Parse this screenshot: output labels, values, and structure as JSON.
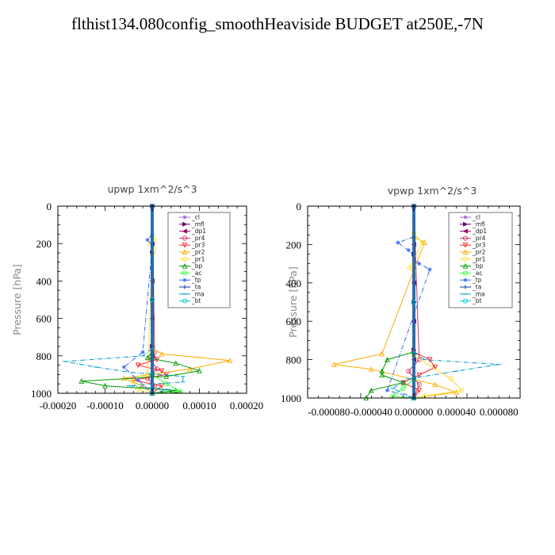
{
  "title": "flthist134.080config_smoothHeaviside  BUDGET at250E,-7N",
  "chart_data": [
    {
      "type": "line",
      "title": "upwp   1xm^2/s^3",
      "ylabel": "Pressure  [hPa]",
      "xlim": [
        -0.0002,
        0.0002
      ],
      "ylim": [
        1000,
        0
      ],
      "xticks": [
        "-0.00020",
        "-0.00010",
        "0.00000",
        "0.00010",
        "0.00020"
      ],
      "xtick_values": [
        -0.0002,
        -0.0001,
        0,
        0.0001,
        0.0002
      ],
      "yticks": [
        "0",
        "200",
        "400",
        "600",
        "800",
        "1000"
      ],
      "ytick_values": [
        0,
        200,
        400,
        600,
        800,
        1000
      ],
      "legend": "top-right",
      "series": [
        {
          "name": "_cl",
          "color": "#9966cc",
          "marker": "*",
          "x": [
            0,
            0,
            0,
            0,
            0
          ],
          "y": [
            0,
            250,
            500,
            750,
            1000
          ]
        },
        {
          "name": "_mfl",
          "color": "#660066",
          "marker": ">",
          "x": [
            0,
            0,
            0,
            0,
            0
          ],
          "y": [
            0,
            250,
            500,
            750,
            1000
          ]
        },
        {
          "name": "_dp1",
          "color": "#990066",
          "marker": "<",
          "x": [
            0,
            0,
            0,
            0,
            0,
            0,
            0
          ],
          "y": [
            0,
            200,
            400,
            600,
            800,
            900,
            1000
          ]
        },
        {
          "name": "_pr4",
          "color": "#cc3366",
          "marker": "o",
          "x": [
            0,
            5e-06,
            -5e-06,
            1e-05,
            -1e-05,
            5e-06,
            0
          ],
          "y": [
            0,
            780,
            820,
            870,
            920,
            960,
            1000
          ]
        },
        {
          "name": "_pr3",
          "color": "#ff2222",
          "marker": "v",
          "x": [
            0,
            1e-05,
            -3e-05,
            2e-05,
            3e-05,
            -4e-05,
            2e-05,
            0
          ],
          "y": [
            780,
            820,
            850,
            880,
            900,
            930,
            960,
            1000
          ]
        },
        {
          "name": "_pr2",
          "color": "#ffaa00",
          "marker": "^",
          "x": [
            0,
            2e-05,
            0.000165,
            8e-05,
            -6e-05,
            -2e-05,
            0
          ],
          "y": [
            760,
            790,
            825,
            870,
            920,
            960,
            1000
          ]
        },
        {
          "name": "_pr1",
          "color": "#ffdd33",
          "marker": "o",
          "x": [
            0,
            4e-06,
            -4e-06,
            4e-06,
            0,
            -1e-05,
            -4e-05,
            -3e-05,
            0
          ],
          "y": [
            160,
            180,
            200,
            230,
            260,
            900,
            940,
            980,
            1000
          ]
        },
        {
          "name": "_bp",
          "color": "#009900",
          "marker": "^",
          "x": [
            0,
            -1e-05,
            5e-05,
            0.0001,
            3e-05,
            -0.00015,
            -0.0001,
            5e-05,
            0
          ],
          "y": [
            780,
            810,
            840,
            880,
            910,
            935,
            960,
            985,
            1000
          ]
        },
        {
          "name": "_ac",
          "color": "#33ff33",
          "marker": "o",
          "x": [
            0,
            3e-05,
            6e-05,
            0
          ],
          "y": [
            900,
            950,
            990,
            1000
          ]
        },
        {
          "name": "_tp",
          "color": "#3366ff",
          "marker": "*",
          "x": [
            0,
            -1e-05,
            0,
            -2e-05,
            -6e-05,
            -3e-05,
            0
          ],
          "y": [
            150,
            180,
            210,
            780,
            860,
            930,
            1000
          ]
        },
        {
          "name": "_ta",
          "color": "#003399",
          "marker": "+",
          "x": [
            0,
            0,
            0,
            0
          ],
          "y": [
            0,
            500,
            900,
            1000
          ]
        },
        {
          "name": "_ma",
          "color": "#0099cc",
          "marker": "-",
          "x": [
            0,
            -2e-05,
            -0.000185,
            -0.00012,
            -4e-05,
            6.5e-05,
            6.5e-05,
            -5e-05,
            3.5e-05,
            0
          ],
          "y": [
            760,
            800,
            830,
            860,
            890,
            910,
            940,
            960,
            980,
            1000
          ]
        },
        {
          "name": "_bt",
          "color": "#00cccc",
          "marker": "o",
          "x": [
            0,
            0,
            0
          ],
          "y": [
            0,
            500,
            1000
          ]
        }
      ]
    },
    {
      "type": "line",
      "title": "vpwp   1xm^2/s^3",
      "ylabel": "Pressure  [hPa]",
      "xlim": [
        -0.0001,
        0.0001
      ],
      "ylim": [
        1000,
        0
      ],
      "xticks": [
        "-0.000080",
        "-0.000040",
        "0.000000",
        "0.000040",
        "0.000080"
      ],
      "xtick_values": [
        -8e-05,
        -4e-05,
        0,
        4e-05,
        8e-05
      ],
      "yticks": [
        "0",
        "200",
        "400",
        "600",
        "800",
        "1000"
      ],
      "ytick_values": [
        0,
        200,
        400,
        600,
        800,
        1000
      ],
      "legend": "top-right",
      "series": [
        {
          "name": "_cl",
          "color": "#9966cc",
          "marker": "*",
          "x": [
            0,
            0,
            0,
            0,
            0
          ],
          "y": [
            0,
            250,
            500,
            750,
            1000
          ]
        },
        {
          "name": "_mfl",
          "color": "#660066",
          "marker": ">",
          "x": [
            0,
            0,
            0,
            0,
            0
          ],
          "y": [
            0,
            250,
            500,
            750,
            1000
          ]
        },
        {
          "name": "_dp1",
          "color": "#990066",
          "marker": "<",
          "x": [
            0,
            0,
            0,
            0,
            0,
            0,
            0
          ],
          "y": [
            0,
            200,
            400,
            600,
            800,
            900,
            1000
          ]
        },
        {
          "name": "_pr4",
          "color": "#cc3366",
          "marker": "o",
          "x": [
            0,
            5e-06,
            -5e-06,
            5e-06,
            0
          ],
          "y": [
            0,
            800,
            860,
            930,
            1000
          ]
        },
        {
          "name": "_pr3",
          "color": "#ff2222",
          "marker": "v",
          "x": [
            0,
            1.5e-05,
            2e-05,
            5e-06,
            -1e-05,
            5e-06,
            0
          ],
          "y": [
            760,
            800,
            840,
            880,
            920,
            960,
            1000
          ]
        },
        {
          "name": "_pr2",
          "color": "#ffaa00",
          "marker": "^",
          "x": [
            0,
            1e-05,
            -3e-05,
            -7.5e-05,
            -4e-05,
            2e-05,
            4e-05,
            0
          ],
          "y": [
            160,
            190,
            770,
            825,
            850,
            930,
            970,
            1000
          ]
        },
        {
          "name": "_pr1",
          "color": "#ffdd33",
          "marker": "o",
          "x": [
            0,
            8e-06,
            -4e-06,
            0,
            0,
            3.5e-05,
            4.5e-05,
            1e-05,
            0
          ],
          "y": [
            140,
            190,
            320,
            340,
            780,
            900,
            960,
            990,
            1000
          ]
        },
        {
          "name": "_bp",
          "color": "#009900",
          "marker": "^",
          "x": [
            0,
            -2.5e-05,
            -3e-05,
            -3e-05,
            -1e-05,
            -4e-05,
            -4.5e-05,
            0
          ],
          "y": [
            760,
            800,
            860,
            880,
            920,
            960,
            1000,
            1000
          ]
        },
        {
          "name": "_ac",
          "color": "#33ff33",
          "marker": "o",
          "x": [
            0,
            -1e-05,
            -2e-05,
            0
          ],
          "y": [
            900,
            950,
            990,
            1000
          ]
        },
        {
          "name": "_tp",
          "color": "#3366ff",
          "marker": "*",
          "x": [
            0,
            -1.5e-05,
            -5e-06,
            5e-06,
            1.5e-05,
            -2.5e-05,
            0
          ],
          "y": [
            160,
            190,
            230,
            300,
            330,
            960,
            1000
          ]
        },
        {
          "name": "_ta",
          "color": "#003399",
          "marker": "+",
          "x": [
            0,
            0,
            0,
            0
          ],
          "y": [
            0,
            500,
            900,
            1000
          ]
        },
        {
          "name": "_ma",
          "color": "#0099cc",
          "marker": "-",
          "x": [
            0,
            1e-05,
            8e-05,
            4e-05,
            -5e-06,
            -2e-05,
            0
          ],
          "y": [
            760,
            800,
            825,
            860,
            900,
            950,
            1000
          ]
        },
        {
          "name": "_bt",
          "color": "#00cccc",
          "marker": "o",
          "x": [
            0,
            0,
            0
          ],
          "y": [
            0,
            500,
            1000
          ]
        }
      ]
    }
  ]
}
